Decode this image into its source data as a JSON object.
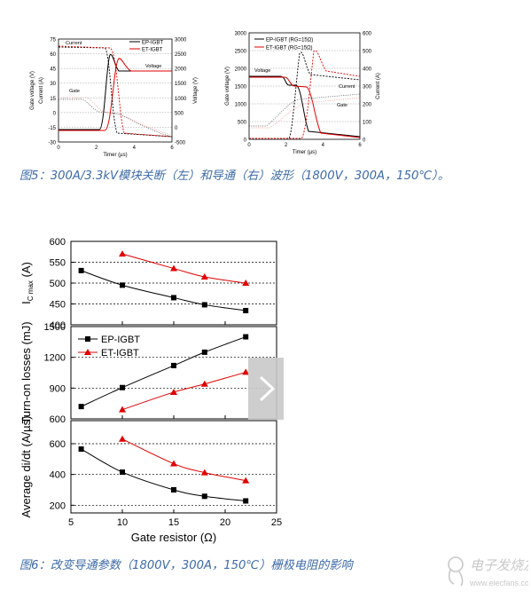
{
  "figure5": {
    "caption": "图5：300A/3.3kV模块关断（左）和导通（右）波形（1800V，300A，150℃）。",
    "left": {
      "legend": [
        "EP-IGBT",
        "ET-IGBT"
      ],
      "xlabel": "Timer (µs)",
      "ylabel_left": "Gate voltage (V)",
      "ylabel_left2": "Current (A)",
      "ylabel_right": "Voltage (V)",
      "annotations": [
        "Current",
        "Voltage",
        "Gate"
      ],
      "x_ticks": [
        "0",
        "2",
        "4",
        "6"
      ],
      "y_left_ticks": [
        "75",
        "60",
        "45",
        "30",
        "15",
        "0",
        "-15",
        "-30"
      ],
      "y_right_ticks": [
        "3000",
        "2500",
        "2000",
        "1500",
        "1000",
        "500",
        "0",
        "-500"
      ]
    },
    "right": {
      "legend": [
        "EP-IGBT (RG=15Ω)",
        "ET-IGBT (RG=15Ω)"
      ],
      "xlabel": "Timer (µs)",
      "ylabel_left": "Gate voltage (V)",
      "ylabel_right": "Current (A)",
      "annotations": [
        "Voltage",
        "Current",
        "Gate"
      ],
      "x_ticks": [
        "0",
        "2",
        "4",
        "6"
      ],
      "y_left_ticks": [
        "3000",
        "2500",
        "2000",
        "1500",
        "1000",
        "500",
        "0"
      ],
      "y_right_ticks": [
        "600",
        "500",
        "400",
        "300",
        "200",
        "100",
        "0"
      ]
    }
  },
  "figure6": {
    "caption": "图6：改变导通参数（1800V，300A，150℃）栅极电阻的影响",
    "xlabel": "Gate resistor (Ω)",
    "x_ticks": [
      5,
      10,
      15,
      20,
      25
    ]
  },
  "chart_data": [
    {
      "type": "line",
      "panel": "top",
      "ylabel": "IC max (A)",
      "ylim": [
        400,
        600
      ],
      "y_ticks": [
        400,
        450,
        500,
        550,
        600
      ],
      "grid": true,
      "series": [
        {
          "name": "EP-IGBT",
          "color": "#000000",
          "marker": "square",
          "x": [
            6,
            10,
            15,
            18,
            22
          ],
          "y": [
            530,
            495,
            465,
            448,
            434
          ]
        },
        {
          "name": "ET-IGBT",
          "color": "#e00000",
          "marker": "triangle",
          "x": [
            10,
            15,
            18,
            22
          ],
          "y": [
            570,
            535,
            515,
            500
          ]
        }
      ]
    },
    {
      "type": "line",
      "panel": "middle",
      "ylabel": "Turn-on losses (mJ)",
      "ylim": [
        600,
        1500
      ],
      "y_ticks": [
        600,
        900,
        1200,
        1500
      ],
      "grid": true,
      "legend_position": "top-left",
      "series": [
        {
          "name": "EP-IGBT",
          "color": "#000000",
          "marker": "square",
          "x": [
            6,
            10,
            15,
            18,
            22
          ],
          "y": [
            720,
            905,
            1120,
            1250,
            1400
          ]
        },
        {
          "name": "ET-IGBT",
          "color": "#e00000",
          "marker": "triangle",
          "x": [
            10,
            15,
            18,
            22
          ],
          "y": [
            690,
            860,
            940,
            1055
          ]
        }
      ]
    },
    {
      "type": "line",
      "panel": "bottom",
      "ylabel": "Average di/dt (A/µs)",
      "xlabel": "Gate resistor (Ω)",
      "xlim": [
        5,
        25
      ],
      "ylim": [
        150,
        750
      ],
      "y_ticks": [
        200,
        400,
        600
      ],
      "grid": true,
      "series": [
        {
          "name": "EP-IGBT",
          "color": "#000000",
          "marker": "square",
          "x": [
            6,
            10,
            15,
            18,
            22
          ],
          "y": [
            565,
            415,
            300,
            258,
            228
          ]
        },
        {
          "name": "ET-IGBT",
          "color": "#e00000",
          "marker": "triangle",
          "x": [
            10,
            15,
            18,
            22
          ],
          "y": [
            630,
            470,
            412,
            360
          ]
        }
      ]
    }
  ],
  "watermark": {
    "title": "电子发烧友",
    "url": "www.elecfans.com"
  }
}
